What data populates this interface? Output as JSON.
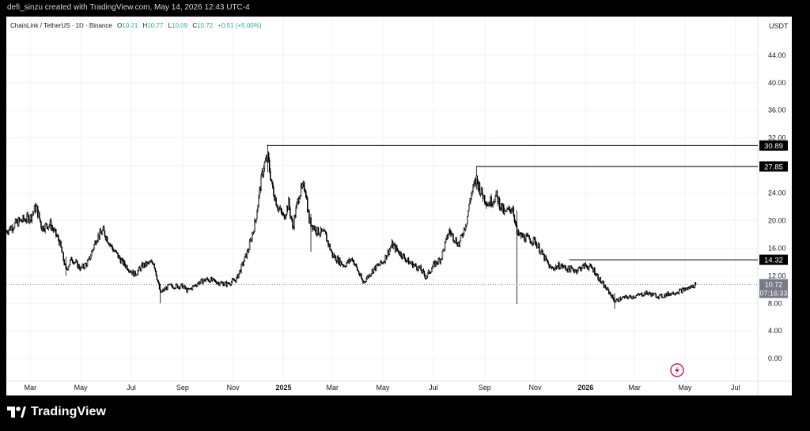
{
  "caption": "defi_sinzu created with TradingView.com, May 14, 2026 12:43 UTC-4",
  "brand": {
    "name": "TradingView",
    "logo_icon": "tradingview-logo-icon"
  },
  "legend": {
    "symbol": "ChainLink / TetherUS · 1D · Binance",
    "o_label": "O",
    "o_value": "10.21",
    "h_label": "H",
    "h_value": "10.77",
    "l_label": "L",
    "l_value": "10.09",
    "c_label": "C",
    "c_value": "10.72",
    "change": "+0.51 (+5.00%)",
    "change_color": "#22ab94"
  },
  "axis": {
    "currency": "USDT"
  },
  "price_label": {
    "value": "10.72",
    "countdown": "07:16:33",
    "bg": "#787b86"
  },
  "levels": [
    {
      "label": "30.89",
      "value": 30.89,
      "from": "2024-12-12"
    },
    {
      "label": "27.85",
      "value": 27.85,
      "from": "2025-08-22"
    },
    {
      "label": "14.32",
      "value": 14.32,
      "from": "2025-12-12"
    }
  ],
  "chart_data": {
    "type": "candlestick",
    "title": "ChainLink / TetherUS · 1D · Binance",
    "ylim": [
      -3.3,
      47.3
    ],
    "y_ticks": [
      "0.00",
      "4.00",
      "8.00",
      "12.00",
      "16.00",
      "20.00",
      "24.00",
      "28.00",
      "32.00",
      "36.00",
      "40.00",
      "44.00"
    ],
    "y_tick_values": [
      0,
      4,
      8,
      12,
      16,
      20,
      24,
      28,
      32,
      36,
      40,
      44
    ],
    "x_range": [
      "2024-02-01",
      "2026-07-28"
    ],
    "x_ticks": [
      {
        "label": "Mar",
        "date": "2024-03-01",
        "bold": false
      },
      {
        "label": "May",
        "date": "2024-05-01",
        "bold": false
      },
      {
        "label": "Jul",
        "date": "2024-07-01",
        "bold": false
      },
      {
        "label": "Sep",
        "date": "2024-09-01",
        "bold": false
      },
      {
        "label": "Nov",
        "date": "2024-11-01",
        "bold": false
      },
      {
        "label": "2025",
        "date": "2025-01-01",
        "bold": true
      },
      {
        "label": "Mar",
        "date": "2025-03-01",
        "bold": false
      },
      {
        "label": "May",
        "date": "2025-05-01",
        "bold": false
      },
      {
        "label": "Jul",
        "date": "2025-07-01",
        "bold": false
      },
      {
        "label": "Sep",
        "date": "2025-09-01",
        "bold": false
      },
      {
        "label": "Nov",
        "date": "2025-11-01",
        "bold": false
      },
      {
        "label": "2026",
        "date": "2026-01-01",
        "bold": true
      },
      {
        "label": "Mar",
        "date": "2026-03-01",
        "bold": false
      },
      {
        "label": "May",
        "date": "2026-05-01",
        "bold": false
      },
      {
        "label": "Jul",
        "date": "2026-07-01",
        "bold": false
      }
    ],
    "last_price": 10.72,
    "price_path": [
      [
        "2024-02-01",
        18.5
      ],
      [
        "2024-02-15",
        19.8
      ],
      [
        "2024-03-01",
        20.5
      ],
      [
        "2024-03-08",
        22.0
      ],
      [
        "2024-03-15",
        19.0
      ],
      [
        "2024-03-25",
        19.5
      ],
      [
        "2024-04-05",
        17.0
      ],
      [
        "2024-04-13",
        12.8
      ],
      [
        "2024-04-20",
        14.5
      ],
      [
        "2024-05-01",
        13.0
      ],
      [
        "2024-05-10",
        14.0
      ],
      [
        "2024-05-20",
        17.5
      ],
      [
        "2024-05-28",
        18.5
      ],
      [
        "2024-06-08",
        16.0
      ],
      [
        "2024-06-20",
        14.0
      ],
      [
        "2024-07-05",
        12.2
      ],
      [
        "2024-07-15",
        13.5
      ],
      [
        "2024-07-28",
        14.0
      ],
      [
        "2024-08-05",
        9.5
      ],
      [
        "2024-08-15",
        10.5
      ],
      [
        "2024-09-01",
        10.5
      ],
      [
        "2024-09-07",
        9.8
      ],
      [
        "2024-09-20",
        11.0
      ],
      [
        "2024-10-01",
        11.5
      ],
      [
        "2024-10-15",
        11.0
      ],
      [
        "2024-10-25",
        10.8
      ],
      [
        "2024-11-05",
        11.5
      ],
      [
        "2024-11-12",
        13.5
      ],
      [
        "2024-11-20",
        16.0
      ],
      [
        "2024-11-28",
        20.0
      ],
      [
        "2024-12-04",
        25.0
      ],
      [
        "2024-12-08",
        28.0
      ],
      [
        "2024-12-13",
        29.0
      ],
      [
        "2024-12-18",
        25.0
      ],
      [
        "2024-12-25",
        22.0
      ],
      [
        "2025-01-01",
        20.5
      ],
      [
        "2025-01-07",
        22.5
      ],
      [
        "2025-01-12",
        19.0
      ],
      [
        "2025-01-20",
        24.0
      ],
      [
        "2025-01-27",
        25.0
      ],
      [
        "2025-02-01",
        20.0
      ],
      [
        "2025-02-10",
        18.5
      ],
      [
        "2025-02-20",
        18.0
      ],
      [
        "2025-03-01",
        15.0
      ],
      [
        "2025-03-15",
        13.5
      ],
      [
        "2025-03-25",
        14.5
      ],
      [
        "2025-04-07",
        11.0
      ],
      [
        "2025-04-20",
        13.0
      ],
      [
        "2025-05-01",
        14.0
      ],
      [
        "2025-05-12",
        16.5
      ],
      [
        "2025-05-20",
        15.5
      ],
      [
        "2025-06-01",
        14.0
      ],
      [
        "2025-06-15",
        13.0
      ],
      [
        "2025-06-22",
        11.8
      ],
      [
        "2025-07-01",
        13.5
      ],
      [
        "2025-07-10",
        14.5
      ],
      [
        "2025-07-20",
        18.5
      ],
      [
        "2025-08-01",
        16.5
      ],
      [
        "2025-08-10",
        20.0
      ],
      [
        "2025-08-15",
        23.5
      ],
      [
        "2025-08-22",
        26.0
      ],
      [
        "2025-08-28",
        24.0
      ],
      [
        "2025-09-05",
        22.5
      ],
      [
        "2025-09-15",
        23.5
      ],
      [
        "2025-09-25",
        21.0
      ],
      [
        "2025-10-05",
        22.0
      ],
      [
        "2025-10-10",
        18.0
      ],
      [
        "2025-10-20",
        17.5
      ],
      [
        "2025-11-01",
        17.0
      ],
      [
        "2025-11-10",
        15.0
      ],
      [
        "2025-11-20",
        13.0
      ],
      [
        "2025-12-01",
        13.5
      ],
      [
        "2025-12-10",
        13.0
      ],
      [
        "2025-12-20",
        12.8
      ],
      [
        "2026-01-01",
        13.5
      ],
      [
        "2026-01-10",
        13.0
      ],
      [
        "2026-01-20",
        11.0
      ],
      [
        "2026-01-30",
        9.5
      ],
      [
        "2026-02-05",
        8.3
      ],
      [
        "2026-02-15",
        8.8
      ],
      [
        "2026-03-01",
        9.0
      ],
      [
        "2026-03-15",
        9.5
      ],
      [
        "2026-04-01",
        9.0
      ],
      [
        "2026-04-15",
        9.5
      ],
      [
        "2026-04-25",
        9.8
      ],
      [
        "2026-05-05",
        10.2
      ],
      [
        "2026-05-14",
        10.72
      ]
    ],
    "wicks": [
      [
        "2024-04-13",
        12.0,
        14.8
      ],
      [
        "2024-08-05",
        8.0,
        10.8
      ],
      [
        "2024-12-13",
        27.0,
        31.0
      ],
      [
        "2025-02-03",
        15.5,
        21.0
      ],
      [
        "2025-08-22",
        24.5,
        27.9
      ],
      [
        "2025-10-10",
        7.9,
        21.5
      ],
      [
        "2026-02-05",
        7.2,
        9.5
      ]
    ]
  }
}
